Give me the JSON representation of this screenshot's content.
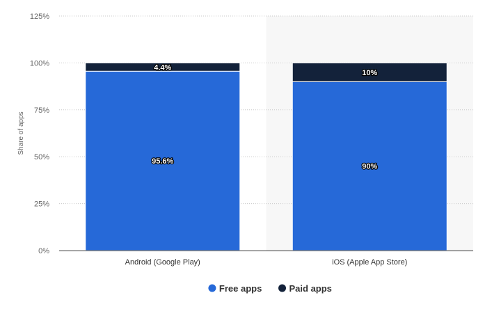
{
  "chart_data": {
    "type": "bar",
    "stacked": true,
    "categories": [
      "Android (Google Play)",
      "iOS (Apple App Store)"
    ],
    "series": [
      {
        "name": "Free apps",
        "values": [
          95.6,
          90
        ],
        "labels": [
          "95.6%",
          "90%"
        ],
        "color": "#2669d8"
      },
      {
        "name": "Paid apps",
        "values": [
          4.4,
          10
        ],
        "labels": [
          "4.4%",
          "10%"
        ],
        "color": "#13223a"
      }
    ],
    "ylabel": "Share of apps",
    "xlabel": "",
    "ylim": [
      0,
      125
    ],
    "yticks": [
      0,
      25,
      50,
      75,
      100,
      125
    ],
    "ytick_labels": [
      "0%",
      "25%",
      "50%",
      "75%",
      "100%",
      "125%"
    ],
    "grid": true,
    "legend": "bottom-center",
    "highlight_category": "iOS (Apple App Store)",
    "highlight_color": "#f7f7f7"
  }
}
